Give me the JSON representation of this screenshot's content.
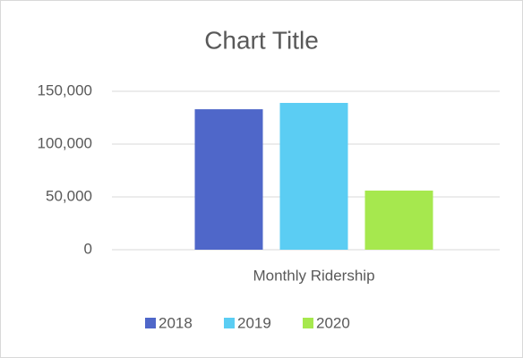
{
  "chart_data": {
    "type": "bar",
    "title": "Chart Title",
    "categories": [
      "Monthly Ridership"
    ],
    "series": [
      {
        "name": "2018",
        "color": "#4f67c9",
        "values": [
          133000
        ]
      },
      {
        "name": "2019",
        "color": "#5bcdf3",
        "values": [
          139000
        ]
      },
      {
        "name": "2020",
        "color": "#a6e84e",
        "values": [
          56000
        ]
      }
    ],
    "ylim": [
      0,
      150000
    ],
    "yticks": [
      0,
      {
        "value": 50000,
        "label": "50,000"
      },
      {
        "value": 100000,
        "label": "100,000"
      },
      {
        "value": 150000,
        "label": "150,000"
      }
    ],
    "grid": true,
    "legend": "bottom"
  }
}
